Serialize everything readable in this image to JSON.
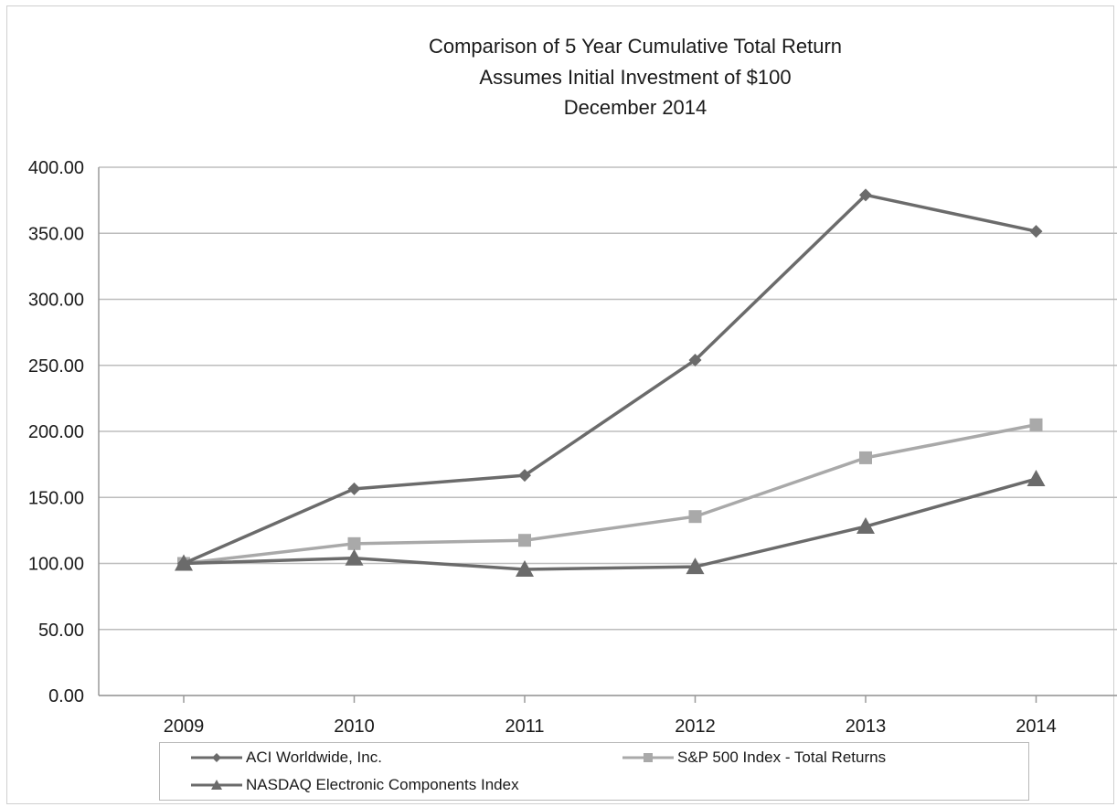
{
  "chart_data": {
    "type": "line",
    "title": "Comparison of 5 Year Cumulative Total Return",
    "subtitle": "Assumes Initial Investment of $100",
    "subtitle2": "December 2014",
    "xlabel": "",
    "ylabel": "",
    "categories": [
      "2009",
      "2010",
      "2011",
      "2012",
      "2013",
      "2014"
    ],
    "ylim": [
      0,
      400
    ],
    "yticks": [
      "0.00",
      "50.00",
      "100.00",
      "150.00",
      "200.00",
      "250.00",
      "300.00",
      "350.00",
      "400.00"
    ],
    "grid": true,
    "legend_position": "bottom",
    "series": [
      {
        "name": "ACI Worldwide, Inc.",
        "marker": "diamond",
        "color": "#6b6b6b",
        "values": [
          100.0,
          156.5,
          166.7,
          254.0,
          379.0,
          351.5
        ]
      },
      {
        "name": "S&P 500 Index - Total Returns",
        "marker": "square",
        "color": "#a9a9a9",
        "values": [
          100.0,
          115.0,
          117.5,
          135.5,
          180.0,
          205.0
        ]
      },
      {
        "name": "NASDAQ Electronic Components Index",
        "marker": "triangle",
        "color": "#6b6b6b",
        "values": [
          100.0,
          104.0,
          95.5,
          97.5,
          128.0,
          164.0
        ]
      }
    ]
  }
}
